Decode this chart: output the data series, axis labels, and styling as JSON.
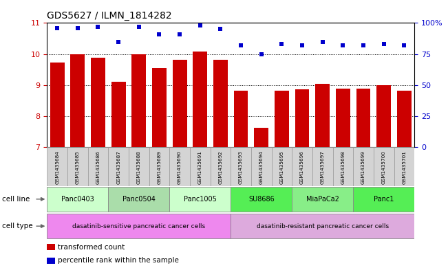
{
  "title": "GDS5627 / ILMN_1814282",
  "samples": [
    "GSM1435684",
    "GSM1435685",
    "GSM1435686",
    "GSM1435687",
    "GSM1435688",
    "GSM1435689",
    "GSM1435690",
    "GSM1435691",
    "GSM1435692",
    "GSM1435693",
    "GSM1435694",
    "GSM1435695",
    "GSM1435696",
    "GSM1435697",
    "GSM1435698",
    "GSM1435699",
    "GSM1435700",
    "GSM1435701"
  ],
  "bar_values": [
    9.72,
    10.0,
    9.88,
    9.1,
    10.0,
    9.54,
    9.82,
    10.08,
    9.82,
    8.82,
    7.62,
    8.82,
    8.86,
    9.04,
    8.88,
    8.88,
    9.0,
    8.82
  ],
  "dot_values": [
    96,
    96,
    97,
    85,
    97,
    91,
    91,
    98,
    95,
    82,
    75,
    83,
    82,
    85,
    82,
    82,
    83,
    82
  ],
  "bar_color": "#cc0000",
  "dot_color": "#0000cc",
  "ylim_left": [
    7,
    11
  ],
  "ylim_right": [
    0,
    100
  ],
  "yticks_left": [
    7,
    8,
    9,
    10,
    11
  ],
  "yticks_right": [
    0,
    25,
    50,
    75,
    100
  ],
  "ytick_labels_right": [
    "0",
    "25",
    "50",
    "75",
    "100%"
  ],
  "cell_lines": [
    {
      "label": "Panc0403",
      "start": 0,
      "end": 2,
      "color": "#ccffcc"
    },
    {
      "label": "Panc0504",
      "start": 3,
      "end": 5,
      "color": "#aaddaa"
    },
    {
      "label": "Panc1005",
      "start": 6,
      "end": 8,
      "color": "#ccffcc"
    },
    {
      "label": "SU8686",
      "start": 9,
      "end": 11,
      "color": "#55ee55"
    },
    {
      "label": "MiaPaCa2",
      "start": 12,
      "end": 14,
      "color": "#88ee88"
    },
    {
      "label": "Panc1",
      "start": 15,
      "end": 17,
      "color": "#55ee55"
    }
  ],
  "cell_types": [
    {
      "label": "dasatinib-sensitive pancreatic cancer cells",
      "start": 0,
      "end": 8,
      "color": "#ee88ee"
    },
    {
      "label": "dasatinib-resistant pancreatic cancer cells",
      "start": 9,
      "end": 17,
      "color": "#ddaadd"
    }
  ],
  "legend_items": [
    {
      "label": "transformed count",
      "color": "#cc0000"
    },
    {
      "label": "percentile rank within the sample",
      "color": "#0000cc"
    }
  ],
  "bg_color": "#ffffff",
  "grid_color": "#000000",
  "tick_label_color_left": "#cc0000",
  "tick_label_color_right": "#0000cc",
  "grid_yticks": [
    8,
    9,
    10
  ]
}
